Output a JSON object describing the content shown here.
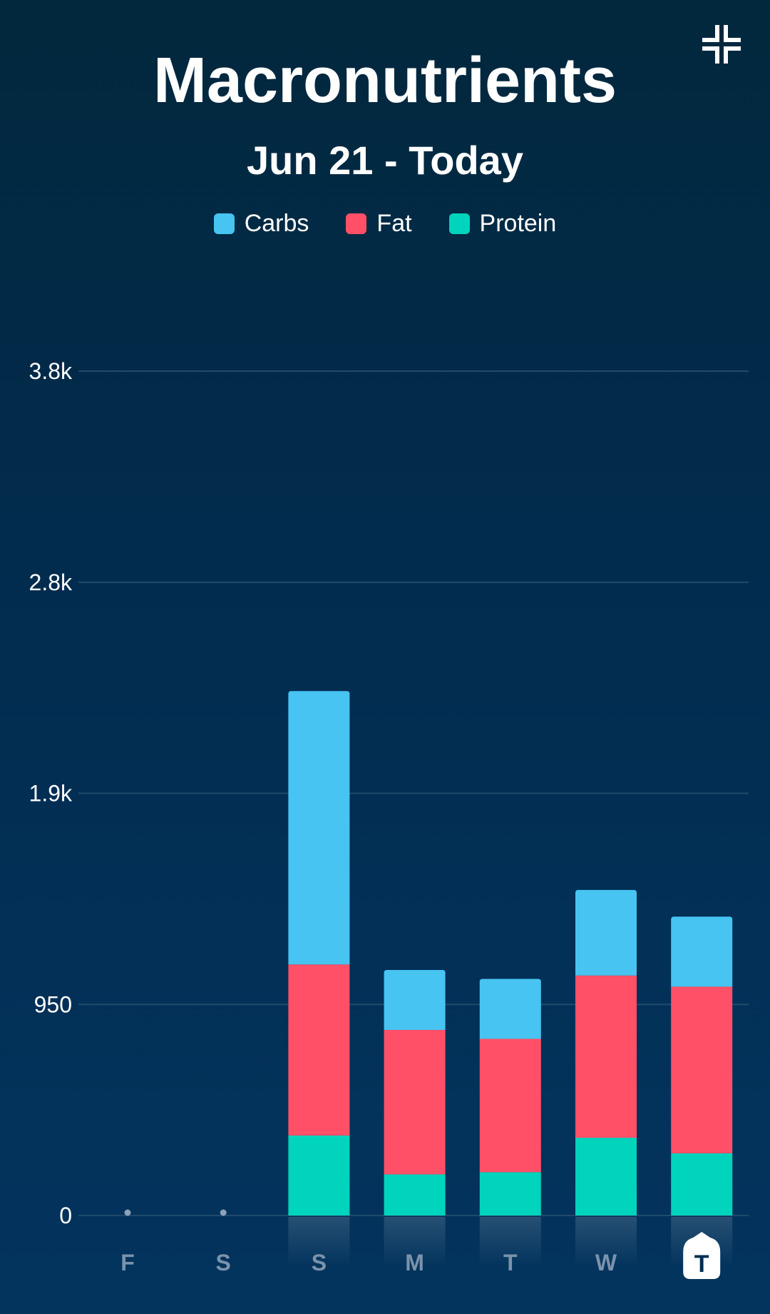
{
  "header": {
    "title": "Macronutrients",
    "subtitle": "Jun 21 - Today",
    "collapse_icon": "collapse-icon"
  },
  "colors": {
    "carbs": "#47c4f1",
    "fat": "#ff5068",
    "protein": "#00d4bc",
    "gridline": "#1f4a6b",
    "axis_label": "#ffffff",
    "day_label": "#7b93ab"
  },
  "legend": [
    {
      "name": "Carbs",
      "color": "#47c4f1"
    },
    {
      "name": "Fat",
      "color": "#ff5068"
    },
    {
      "name": "Protein",
      "color": "#00d4bc"
    }
  ],
  "chart_data": {
    "type": "bar",
    "stacked": true,
    "categories": [
      "F",
      "S",
      "S",
      "M",
      "T",
      "W",
      "T"
    ],
    "active_category_index": 6,
    "yticks": [
      0,
      950,
      1900,
      2850,
      3800
    ],
    "ytick_labels": [
      "0",
      "950",
      "1.9k",
      "2.8k",
      "3.8k"
    ],
    "ylim": [
      0,
      3800
    ],
    "grid": true,
    "legend_position": "top-center",
    "series": [
      {
        "name": "Protein",
        "values": [
          0,
          0,
          360,
          185,
          195,
          350,
          280
        ]
      },
      {
        "name": "Fat",
        "values": [
          0,
          0,
          770,
          650,
          600,
          730,
          750
        ]
      },
      {
        "name": "Carbs",
        "values": [
          0,
          0,
          1230,
          270,
          270,
          385,
          315
        ]
      }
    ]
  }
}
